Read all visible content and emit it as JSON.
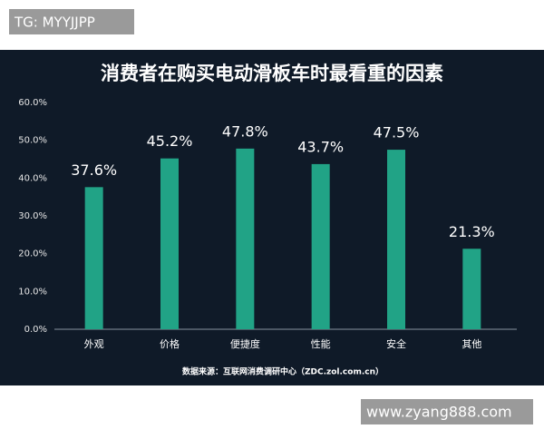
{
  "watermarks": [
    "TG: MYYJJPP",
    "www.zyang888.com"
  ],
  "chart_data": {
    "type": "bar",
    "title": "消费者在购买电动滑板车时最看重的因素",
    "source": "数据来源：互联网消费调研中心（ZDC.zol.com.cn）",
    "categories": [
      "外观",
      "价格",
      "便捷度",
      "性能",
      "安全",
      "其他"
    ],
    "values": [
      37.6,
      45.2,
      47.8,
      43.7,
      47.5,
      21.3
    ],
    "value_labels": [
      "37.6%",
      "45.2%",
      "47.8%",
      "43.7%",
      "47.5%",
      "21.3%"
    ],
    "color": "#21a386",
    "ylim": [
      0,
      60
    ],
    "yticks": [
      {
        "value": 0,
        "label": "0.0%"
      },
      {
        "value": 10,
        "label": "10.0%"
      },
      {
        "value": 20,
        "label": "20.0%"
      },
      {
        "value": 30,
        "label": "30.0%"
      },
      {
        "value": 40,
        "label": "40.0%"
      },
      {
        "value": 50,
        "label": "50.0%"
      },
      {
        "value": 60,
        "label": "60.0%"
      }
    ],
    "grid": false
  }
}
